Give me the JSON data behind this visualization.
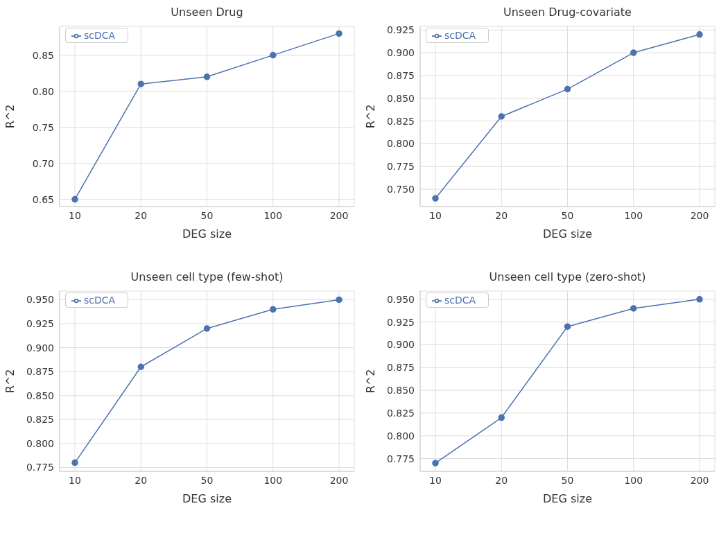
{
  "chart_data": [
    {
      "type": "line",
      "title": "Unseen Drug",
      "xlabel": "DEG size",
      "ylabel": "R^2",
      "categories": [
        "10",
        "20",
        "50",
        "100",
        "200"
      ],
      "series": [
        {
          "name": "scDCA",
          "color": "#4c72b0",
          "values": [
            0.65,
            0.81,
            0.82,
            0.85,
            0.88
          ]
        }
      ],
      "ylim": [
        0.64,
        0.89
      ],
      "yticks": [
        {
          "value": 0.65,
          "label": "0.65"
        },
        {
          "value": 0.7,
          "label": "0.70"
        },
        {
          "value": 0.75,
          "label": "0.75"
        },
        {
          "value": 0.8,
          "label": "0.80"
        },
        {
          "value": 0.85,
          "label": "0.85"
        }
      ],
      "grid": true,
      "legend": "top left",
      "marker": "circle",
      "line_style": "solid"
    },
    {
      "type": "line",
      "title": "Unseen Drug-covariate",
      "xlabel": "DEG size",
      "ylabel": "R^2",
      "categories": [
        "10",
        "20",
        "50",
        "100",
        "200"
      ],
      "series": [
        {
          "name": "scDCA",
          "color": "#4c72b0",
          "values": [
            0.74,
            0.83,
            0.86,
            0.9,
            0.92
          ]
        }
      ],
      "ylim": [
        0.731,
        0.929
      ],
      "yticks": [
        {
          "value": 0.75,
          "label": "0.750"
        },
        {
          "value": 0.775,
          "label": "0.775"
        },
        {
          "value": 0.8,
          "label": "0.800"
        },
        {
          "value": 0.825,
          "label": "0.825"
        },
        {
          "value": 0.85,
          "label": "0.850"
        },
        {
          "value": 0.875,
          "label": "0.875"
        },
        {
          "value": 0.9,
          "label": "0.900"
        },
        {
          "value": 0.925,
          "label": "0.925"
        }
      ],
      "grid": true,
      "legend": "top left",
      "marker": "circle",
      "line_style": "solid"
    },
    {
      "type": "line",
      "title": "Unseen cell type (few-shot)",
      "xlabel": "DEG size",
      "ylabel": "R^2",
      "categories": [
        "10",
        "20",
        "50",
        "100",
        "200"
      ],
      "series": [
        {
          "name": "scDCA",
          "color": "#4c72b0",
          "values": [
            0.78,
            0.88,
            0.92,
            0.94,
            0.95
          ]
        }
      ],
      "ylim": [
        0.771,
        0.959
      ],
      "yticks": [
        {
          "value": 0.775,
          "label": "0.775"
        },
        {
          "value": 0.8,
          "label": "0.800"
        },
        {
          "value": 0.825,
          "label": "0.825"
        },
        {
          "value": 0.85,
          "label": "0.850"
        },
        {
          "value": 0.875,
          "label": "0.875"
        },
        {
          "value": 0.9,
          "label": "0.900"
        },
        {
          "value": 0.925,
          "label": "0.925"
        },
        {
          "value": 0.95,
          "label": "0.950"
        }
      ],
      "grid": true,
      "legend": "top left",
      "marker": "circle",
      "line_style": "solid"
    },
    {
      "type": "line",
      "title": "Unseen cell type (zero-shot)",
      "xlabel": "DEG size",
      "ylabel": "R^2",
      "categories": [
        "10",
        "20",
        "50",
        "100",
        "200"
      ],
      "series": [
        {
          "name": "scDCA",
          "color": "#4c72b0",
          "values": [
            0.77,
            0.82,
            0.92,
            0.94,
            0.95
          ]
        }
      ],
      "ylim": [
        0.761,
        0.959
      ],
      "yticks": [
        {
          "value": 0.775,
          "label": "0.775"
        },
        {
          "value": 0.8,
          "label": "0.800"
        },
        {
          "value": 0.825,
          "label": "0.825"
        },
        {
          "value": 0.85,
          "label": "0.850"
        },
        {
          "value": 0.875,
          "label": "0.875"
        },
        {
          "value": 0.9,
          "label": "0.900"
        },
        {
          "value": 0.925,
          "label": "0.925"
        },
        {
          "value": 0.95,
          "label": "0.950"
        }
      ],
      "grid": true,
      "legend": "top left",
      "marker": "circle",
      "line_style": "solid"
    }
  ]
}
